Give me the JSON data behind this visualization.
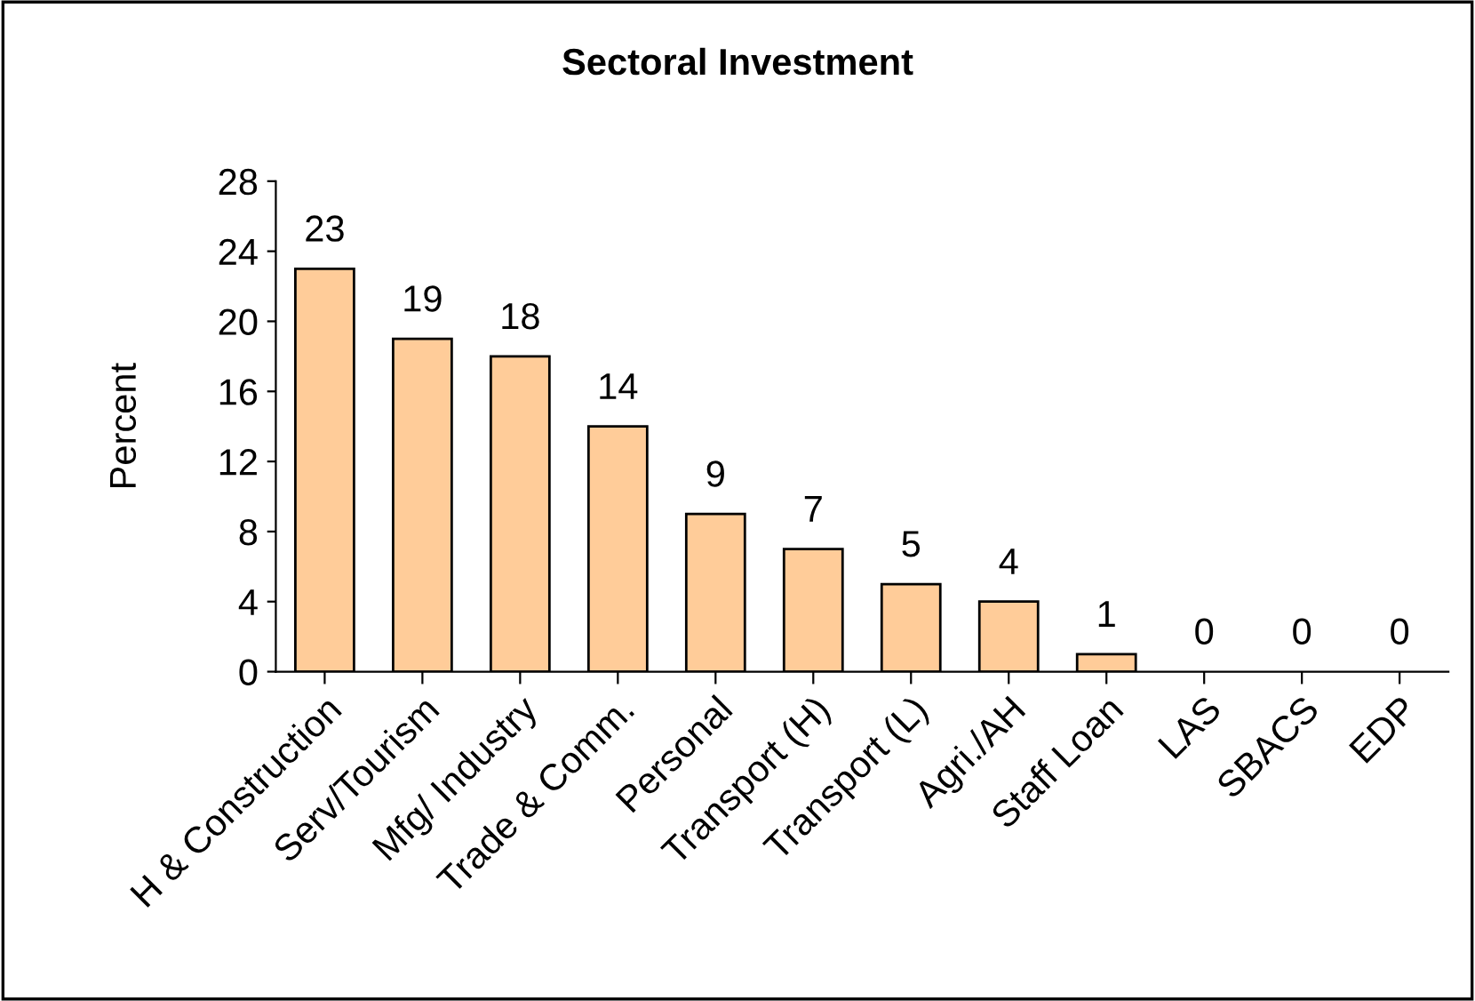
{
  "chart_data": {
    "type": "bar",
    "title": "Sectoral Investment",
    "ylabel": "Percent",
    "categories": [
      "H & Construction",
      "Serv/Tourism",
      "Mfg/ Industry",
      "Trade & Comm.",
      "Personal",
      "Transport (H)",
      "Transport (L)",
      "Agri./AH",
      "Staff Loan",
      "LAS",
      "SBACS",
      "EDP"
    ],
    "values": [
      23,
      19,
      18,
      14,
      9,
      7,
      5,
      4,
      1,
      0,
      0,
      0
    ],
    "color": "#ffcc99",
    "ylim": [
      0,
      28
    ],
    "yticks": [
      0,
      4,
      8,
      12,
      16,
      20,
      24,
      28
    ],
    "data_labels": true,
    "grid": false,
    "legend": false
  }
}
